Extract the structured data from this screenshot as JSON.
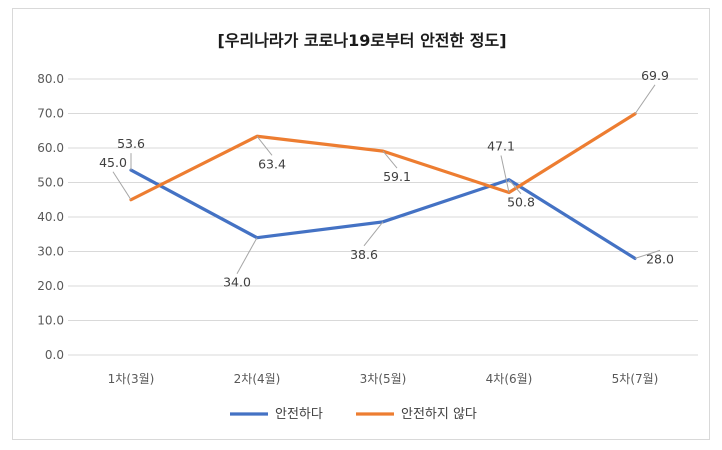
{
  "chart_data": {
    "type": "line",
    "title": "[우리나라가 코로나19로부터 안전한 정도]",
    "categories": [
      "1차(3월)",
      "2차(4월)",
      "3차(5월)",
      "4차(6월)",
      "5차(7월)"
    ],
    "ylim": [
      0,
      80
    ],
    "yticks": [
      "0.0",
      "10.0",
      "20.0",
      "30.0",
      "40.0",
      "50.0",
      "60.0",
      "70.0",
      "80.0"
    ],
    "grid": true,
    "legend_position": "bottom",
    "series": [
      {
        "name": "안전하다",
        "color": "#4472c4",
        "values": [
          53.6,
          34.0,
          38.6,
          50.8,
          28.0
        ],
        "labels": [
          "53.6",
          "34.0",
          "38.6",
          "50.8",
          "28.0"
        ]
      },
      {
        "name": "안전하지 않다",
        "color": "#ed7d31",
        "values": [
          45.0,
          63.4,
          59.1,
          47.1,
          69.9
        ],
        "labels": [
          "45.0",
          "63.4",
          "59.1",
          "47.1",
          "69.9"
        ]
      }
    ]
  }
}
